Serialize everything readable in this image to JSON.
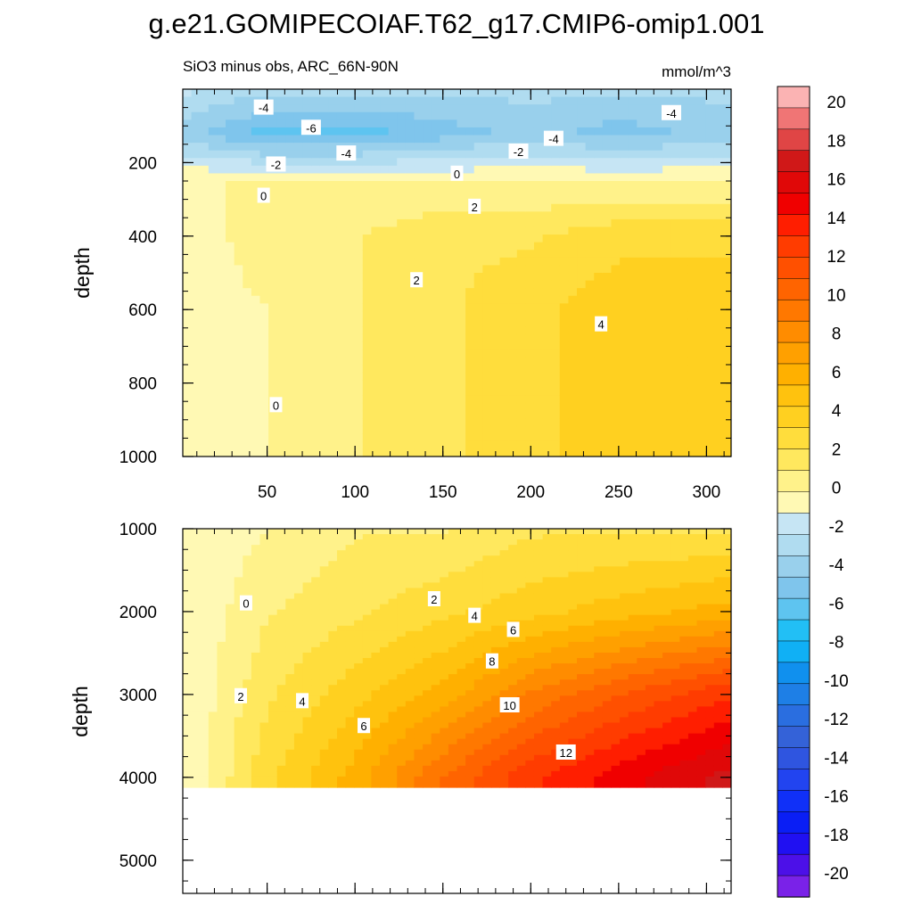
{
  "chart_data": {
    "type": "contour",
    "title": "g.e21.GOMIPECOIAF.T62_g17.CMIP6-omip1.001",
    "subtitle_left": "SiO3 minus obs, ARC_66N-90N",
    "units": "mmol/m^3",
    "x": [
      5,
      50,
      100,
      150,
      200,
      250,
      310
    ],
    "top_panel": {
      "ylabel": "depth",
      "ylim": [
        0,
        1000
      ],
      "yticks": [
        200,
        400,
        600,
        800,
        1000
      ],
      "ytick_labels": [
        "200",
        "400",
        "600",
        "800",
        "1000"
      ],
      "xticks": [
        50,
        100,
        150,
        200,
        250,
        300
      ],
      "xtick_labels": [
        "50",
        "100",
        "150",
        "200",
        "250",
        "300"
      ],
      "depth": [
        0,
        120,
        250,
        400,
        600,
        800,
        1000
      ],
      "values": [
        [
          -2,
          -3,
          -3,
          -3,
          -3,
          -3,
          -3
        ],
        [
          -4,
          -6,
          -6,
          -5,
          -4,
          -5,
          -4
        ],
        [
          0,
          0,
          0,
          0,
          0,
          0,
          0
        ],
        [
          -1,
          1,
          1,
          2,
          2,
          3,
          3
        ],
        [
          -1,
          0,
          1,
          2,
          3,
          4,
          4
        ],
        [
          -1,
          0,
          1,
          2,
          3,
          4,
          4
        ],
        [
          -1,
          0,
          1,
          2,
          3,
          4,
          4
        ]
      ],
      "contour_labels": [
        {
          "text": "-4",
          "x": 48,
          "depth": 50
        },
        {
          "text": "-6",
          "x": 75,
          "depth": 105
        },
        {
          "text": "-4",
          "x": 95,
          "depth": 175
        },
        {
          "text": "-2",
          "x": 55,
          "depth": 205
        },
        {
          "text": "0",
          "x": 48,
          "depth": 290
        },
        {
          "text": "0",
          "x": 158,
          "depth": 230
        },
        {
          "text": "-2",
          "x": 193,
          "depth": 170
        },
        {
          "text": "-4",
          "x": 213,
          "depth": 135
        },
        {
          "text": "-4",
          "x": 280,
          "depth": 65
        },
        {
          "text": "2",
          "x": 168,
          "depth": 320
        },
        {
          "text": "2",
          "x": 135,
          "depth": 520
        },
        {
          "text": "4",
          "x": 240,
          "depth": 640
        },
        {
          "text": "0",
          "x": 55,
          "depth": 860
        }
      ]
    },
    "bottom_panel": {
      "ylabel": "depth",
      "ylim": [
        1000,
        5400
      ],
      "yticks": [
        1000,
        2000,
        3000,
        4000,
        5000
      ],
      "ytick_labels": [
        "1000",
        "2000",
        "3000",
        "4000",
        "5000"
      ],
      "data_bottom": 4120,
      "depth": [
        1000,
        2000,
        3000,
        4000
      ],
      "values": [
        [
          -1,
          0,
          1,
          1,
          2,
          2,
          2
        ],
        [
          -1,
          1,
          2,
          3,
          4,
          5,
          6
        ],
        [
          -1,
          2,
          4,
          6,
          9,
          11,
          13
        ],
        [
          -1,
          3,
          6,
          10,
          13,
          15,
          17
        ]
      ],
      "contour_labels": [
        {
          "text": "0",
          "x": 38,
          "depth": 1900
        },
        {
          "text": "2",
          "x": 145,
          "depth": 1850
        },
        {
          "text": "4",
          "x": 168,
          "depth": 2050
        },
        {
          "text": "6",
          "x": 190,
          "depth": 2220
        },
        {
          "text": "8",
          "x": 178,
          "depth": 2600
        },
        {
          "text": "10",
          "x": 188,
          "depth": 3130
        },
        {
          "text": "12",
          "x": 220,
          "depth": 3700
        },
        {
          "text": "2",
          "x": 35,
          "depth": 3020
        },
        {
          "text": "4",
          "x": 70,
          "depth": 3080
        },
        {
          "text": "6",
          "x": 105,
          "depth": 3380
        }
      ]
    },
    "colorbar": {
      "levels": [
        20,
        18,
        16,
        14,
        12,
        10,
        8,
        6,
        4,
        2,
        0,
        -2,
        -4,
        -6,
        -8,
        -10,
        -12,
        -14,
        -16,
        -18,
        -20
      ],
      "labels": [
        "20",
        "18",
        "16",
        "14",
        "12",
        "10",
        "8",
        "6",
        "4",
        "2",
        "0",
        "-2",
        "-4",
        "-6",
        "-8",
        "-10",
        "-12",
        "-14",
        "-16",
        "-18",
        "-20"
      ],
      "colors": [
        "#fbb3b3",
        "#f07575",
        "#e04545",
        "#d01818",
        "#e00808",
        "#f00000",
        "#ff1e00",
        "#ff3c00",
        "#ff5000",
        "#ff6400",
        "#ff7800",
        "#ff8c00",
        "#ffa000",
        "#ffb000",
        "#ffc20e",
        "#ffd020",
        "#ffdd3c",
        "#ffe85e",
        "#fff28a",
        "#fff9b4",
        "#c6e5f4",
        "#b0dcf0",
        "#99d0ec",
        "#7fc5ec",
        "#5ec4f0",
        "#22bff5",
        "#10b0f5",
        "#1090ee",
        "#1e7fe6",
        "#2a6ee0",
        "#3462d8",
        "#2f55e0",
        "#2244f0",
        "#1030f8",
        "#0a1ef5",
        "#2010f2",
        "#4c10e8",
        "#7a22e8"
      ]
    }
  }
}
